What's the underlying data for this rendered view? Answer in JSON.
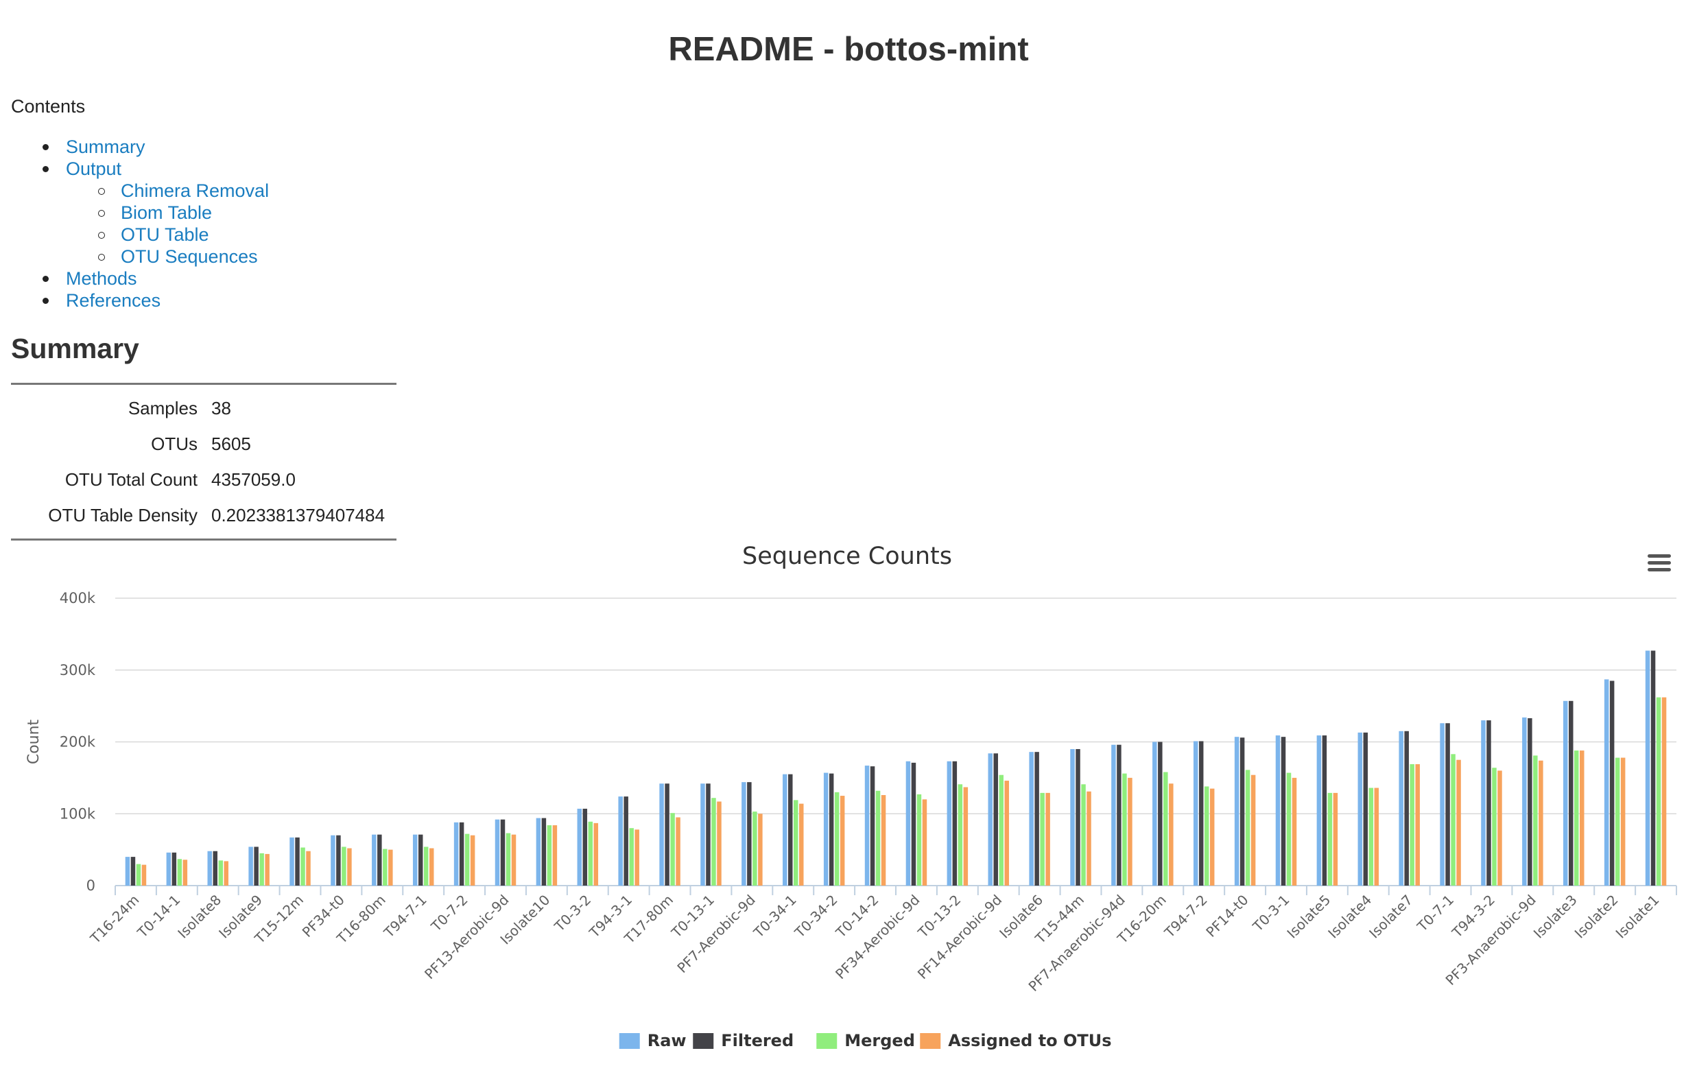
{
  "page": {
    "title": "README - bottos-mint",
    "contents_label": "Contents"
  },
  "toc": [
    {
      "label": "Summary",
      "level": 1
    },
    {
      "label": "Output",
      "level": 1
    },
    {
      "label": "Chimera Removal",
      "level": 2
    },
    {
      "label": "Biom Table",
      "level": 2
    },
    {
      "label": "OTU Table",
      "level": 2
    },
    {
      "label": "OTU Sequences",
      "level": 2
    },
    {
      "label": "Methods",
      "level": 1
    },
    {
      "label": "References",
      "level": 1
    }
  ],
  "summary": {
    "heading": "Summary",
    "rows": [
      {
        "key": "Samples",
        "value": "38"
      },
      {
        "key": "OTUs",
        "value": "5605"
      },
      {
        "key": "OTU Total Count",
        "value": "4357059.0"
      },
      {
        "key": "OTU Table Density",
        "value": "0.2023381379407484"
      }
    ]
  },
  "chart_data": {
    "type": "bar",
    "title": "Sequence Counts",
    "ylabel": "Count",
    "xlabel": "",
    "ylim": [
      0,
      400000
    ],
    "yticks": [
      0,
      100000,
      200000,
      300000,
      400000
    ],
    "ytick_labels": [
      "0",
      "100k",
      "200k",
      "300k",
      "400k"
    ],
    "grid": true,
    "legend": "bottom-center",
    "categories": [
      "T16-24m",
      "T0-14-1",
      "Isolate8",
      "Isolate9",
      "T15-12m",
      "PF34-t0",
      "T16-80m",
      "T94-7-1",
      "T0-7-2",
      "PF13-Aerobic-9d",
      "Isolate10",
      "T0-3-2",
      "T94-3-1",
      "T17-80m",
      "T0-13-1",
      "PF7-Aerobic-9d",
      "T0-34-1",
      "T0-34-2",
      "T0-14-2",
      "PF34-Aerobic-9d",
      "T0-13-2",
      "PF14-Aerobic-9d",
      "Isolate6",
      "T15-44m",
      "PF7-Anaerobic-94d",
      "T16-20m",
      "T94-7-2",
      "PF14-t0",
      "T0-3-1",
      "Isolate5",
      "Isolate4",
      "Isolate7",
      "T0-7-1",
      "T94-3-2",
      "PF3-Anaerobic-9d",
      "Isolate3",
      "Isolate2",
      "Isolate1"
    ],
    "series": [
      {
        "name": "Raw",
        "color": "#7cb5ec",
        "values": [
          40000,
          46000,
          48000,
          54000,
          67000,
          70000,
          71000,
          71000,
          88000,
          92000,
          94000,
          107000,
          124000,
          142000,
          142000,
          144000,
          155000,
          157000,
          167000,
          173000,
          173000,
          184000,
          186000,
          190000,
          196000,
          200000,
          201000,
          207000,
          209000,
          209000,
          213000,
          215000,
          226000,
          230000,
          234000,
          257000,
          287000,
          327000
        ]
      },
      {
        "name": "Filtered",
        "color": "#434348",
        "values": [
          40000,
          46000,
          48000,
          54000,
          67000,
          70000,
          71000,
          71000,
          88000,
          92000,
          94000,
          107000,
          124000,
          142000,
          142000,
          144000,
          155000,
          156000,
          166000,
          171000,
          173000,
          184000,
          186000,
          190000,
          196000,
          200000,
          201000,
          206000,
          207000,
          209000,
          213000,
          215000,
          226000,
          230000,
          233000,
          257000,
          285000,
          327000
        ]
      },
      {
        "name": "Merged",
        "color": "#90ed7d",
        "values": [
          30000,
          37000,
          35000,
          45000,
          53000,
          54000,
          51000,
          54000,
          72000,
          73000,
          84000,
          89000,
          80000,
          101000,
          122000,
          103000,
          119000,
          130000,
          132000,
          127000,
          141000,
          154000,
          129000,
          141000,
          156000,
          158000,
          138000,
          161000,
          157000,
          129000,
          136000,
          169000,
          183000,
          164000,
          181000,
          188000,
          178000,
          262000
        ]
      },
      {
        "name": "Assigned to OTUs",
        "color": "#f7a35c",
        "values": [
          29000,
          36000,
          34000,
          44000,
          48000,
          52000,
          50000,
          52000,
          70000,
          71000,
          84000,
          87000,
          78000,
          95000,
          117000,
          100000,
          114000,
          125000,
          126000,
          120000,
          137000,
          146000,
          129000,
          131000,
          150000,
          142000,
          135000,
          154000,
          150000,
          129000,
          136000,
          169000,
          175000,
          160000,
          174000,
          188000,
          178000,
          262000
        ]
      }
    ]
  },
  "chart_menu": {
    "icon": "hamburger-menu-icon"
  }
}
